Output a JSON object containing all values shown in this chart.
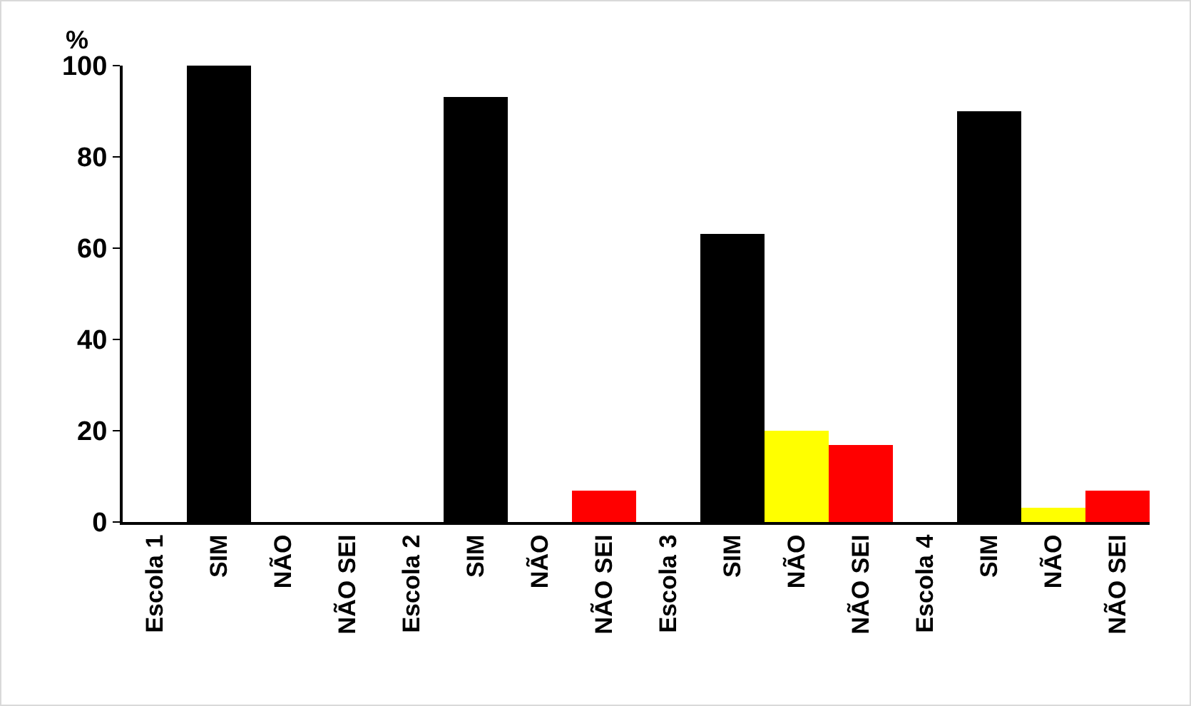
{
  "chart_data": {
    "type": "bar",
    "ylabel": "%",
    "categories": [
      "Escola 1",
      "SIM",
      "NÃO",
      "NÃO SEI",
      "Escola 2",
      "SIM",
      "NÃO",
      "NÃO SEI",
      "Escola 3",
      "SIM",
      "NÃO",
      "NÃO SEI",
      "Escola 4",
      "SIM",
      "NÃO",
      "NÃO SEI"
    ],
    "values": [
      null,
      100,
      0,
      0,
      null,
      93,
      0,
      7,
      null,
      63,
      20,
      17,
      null,
      90,
      3,
      7
    ],
    "colors": [
      "#000000",
      "#000000",
      "#ffff00",
      "#ff0000",
      "#000000",
      "#000000",
      "#ffff00",
      "#ff0000",
      "#000000",
      "#000000",
      "#ffff00",
      "#ff0000",
      "#000000",
      "#000000",
      "#ffff00",
      "#ff0000"
    ],
    "ylim": [
      0,
      100
    ],
    "yticks": [
      0,
      20,
      40,
      60,
      80,
      100
    ],
    "grid": false
  }
}
